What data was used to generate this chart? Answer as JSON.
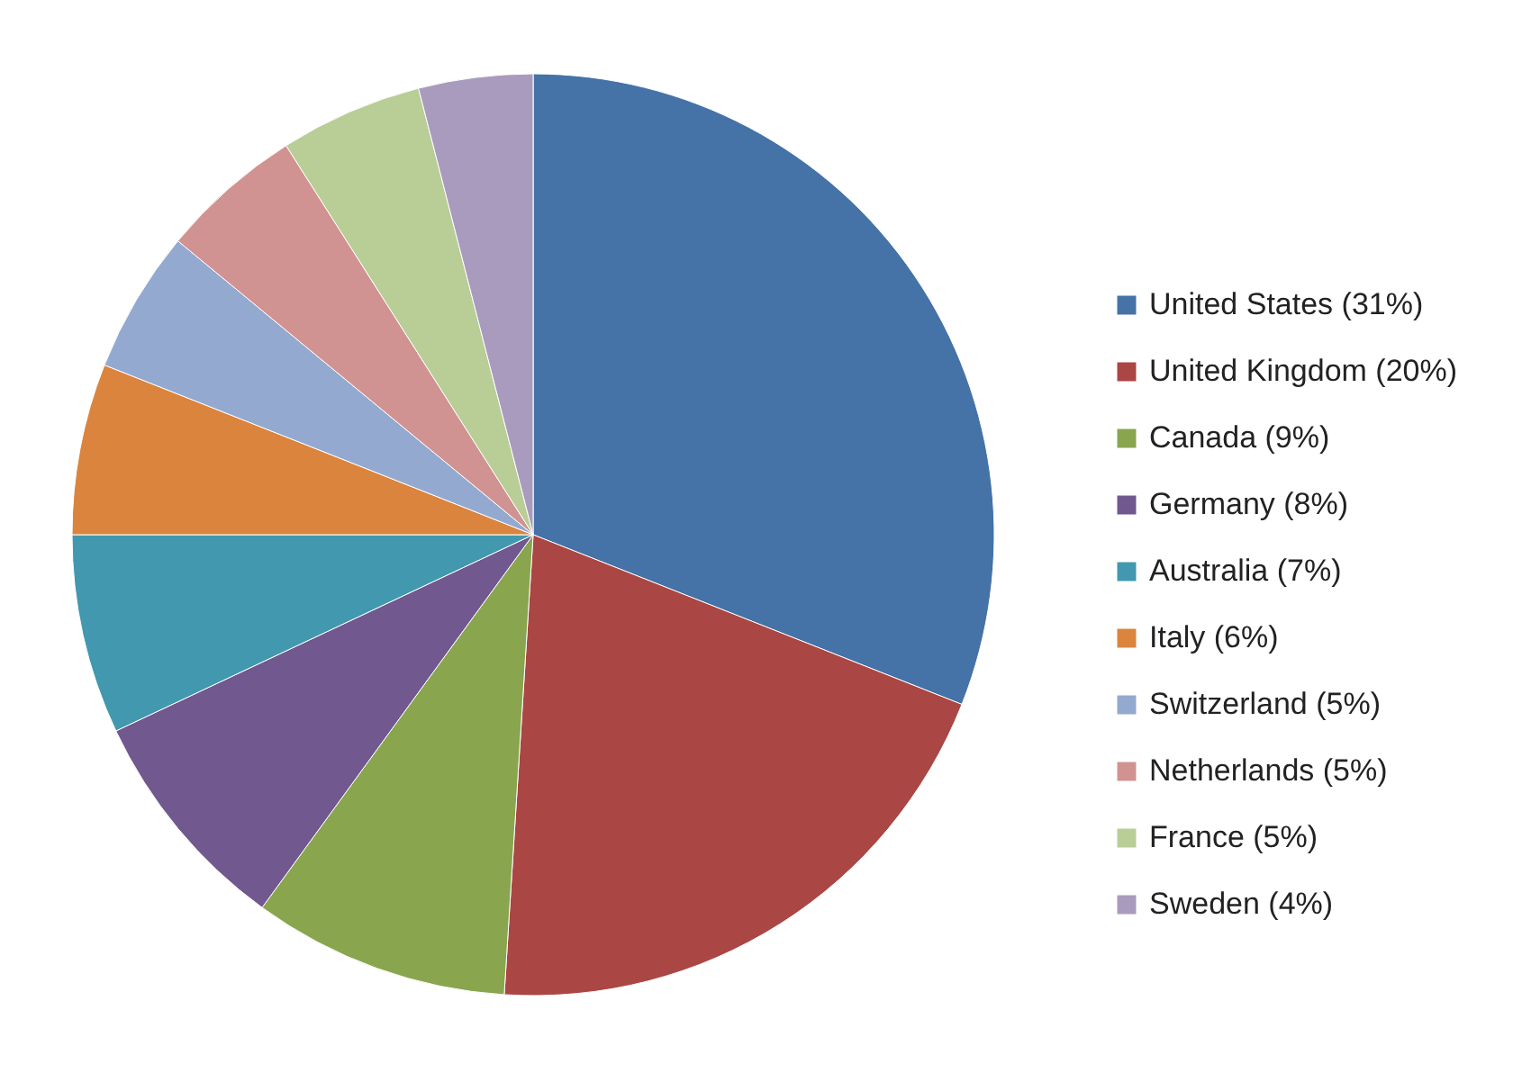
{
  "chart_data": {
    "type": "pie",
    "categories": [
      "United States (31%)",
      "United Kingdom (20%)",
      "Canada (9%)",
      "Germany (8%)",
      "Australia (7%)",
      "Italy (6%)",
      "Switzerland (5%)",
      "Netherlands (5%)",
      "France (5%)",
      "Sweden (4%)"
    ],
    "values": [
      31,
      20,
      9,
      8,
      7,
      6,
      5,
      5,
      5,
      4
    ],
    "colors": [
      "#4572a7",
      "#aa4643",
      "#89a54e",
      "#71588f",
      "#4198af",
      "#db843d",
      "#93a9cf",
      "#d19392",
      "#b9cd96",
      "#a99bbd"
    ],
    "legend": "right"
  }
}
